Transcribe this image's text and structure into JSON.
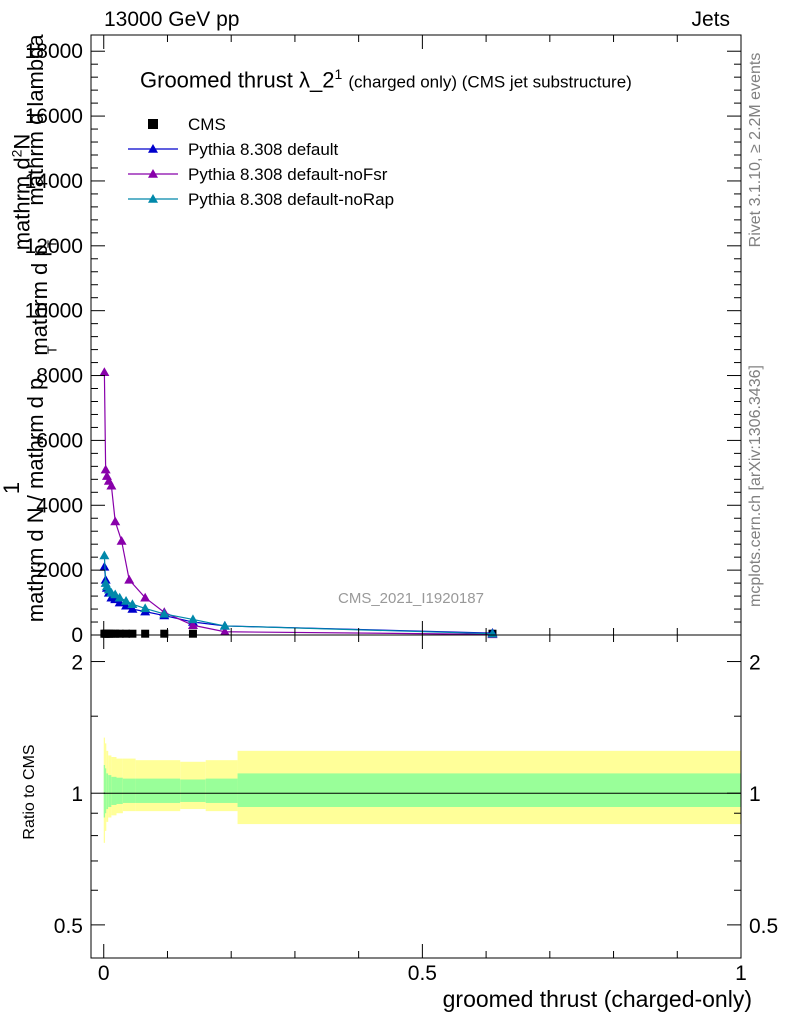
{
  "header": {
    "left": "13000 GeV pp",
    "right": "Jets"
  },
  "side_labels": {
    "rivet": "Rivet 3.1.10, ≥ 2.2M events",
    "mcplots": "mcplots.cern.ch [arXiv:1306.3436]"
  },
  "watermark": "CMS_2021_I1920187",
  "colors": {
    "cms": "#000000",
    "default": "#0000cc",
    "noFsr": "#8800aa",
    "noRap": "#0088aa",
    "band_outer": "#ffff99",
    "band_inner": "#99ff99"
  },
  "chart_data": [
    {
      "type": "line",
      "title": "Groomed thrust",
      "title_symbol": "λ_2",
      "title_superscript": "1",
      "title_suffix": "(charged only) (CMS jet substructure)",
      "ylabel": "1 / mathrm d N / mathrm d p_T  mathrm d^2N / mathrm d p_T mathrm d lambda",
      "ylabel_parts": {
        "one": "1",
        "den": "mathrm d N / mathrm d p",
        "num_top": "mathrm d",
        "num_sup": "2",
        "num_rest": "N",
        "den2": "mathrm d p",
        "lam": "mathrm d lambda",
        "sub_t": "T"
      },
      "xlabel": "groomed thrust (charged-only)",
      "xlim": [
        -0.02,
        1.0
      ],
      "ylim": [
        0,
        18500
      ],
      "yticks": [
        0,
        2000,
        4000,
        6000,
        8000,
        10000,
        12000,
        14000,
        16000,
        18000
      ],
      "ytick_labels": [
        "0",
        "2000",
        "4000",
        "6000",
        "8000",
        "10000",
        "12000",
        "14000",
        "16000",
        "18000"
      ],
      "legend_position": "top-left",
      "series": [
        {
          "name": "CMS",
          "marker": "square",
          "x": [
            0.001,
            0.003,
            0.005,
            0.008,
            0.012,
            0.018,
            0.025,
            0.035,
            0.045,
            0.065,
            0.095,
            0.14,
            0.61
          ],
          "y": [
            40,
            40,
            40,
            40,
            40,
            40,
            40,
            40,
            40,
            40,
            40,
            40,
            40
          ]
        },
        {
          "name": "Pythia 8.308 default",
          "marker": "triangle",
          "x": [
            0.001,
            0.003,
            0.005,
            0.008,
            0.012,
            0.018,
            0.025,
            0.035,
            0.045,
            0.065,
            0.095,
            0.14,
            0.19,
            0.61
          ],
          "y": [
            2100,
            1700,
            1450,
            1300,
            1150,
            1100,
            1000,
            900,
            800,
            720,
            600,
            400,
            280,
            60
          ]
        },
        {
          "name": "Pythia 8.308 default-noFsr",
          "marker": "triangle",
          "x": [
            0.001,
            0.003,
            0.005,
            0.008,
            0.012,
            0.018,
            0.028,
            0.04,
            0.065,
            0.095,
            0.14,
            0.19,
            0.61
          ],
          "y": [
            8100,
            5100,
            4900,
            4750,
            4600,
            3500,
            2900,
            1700,
            1150,
            700,
            300,
            100,
            20
          ]
        },
        {
          "name": "Pythia 8.308 default-noRap",
          "marker": "triangle",
          "x": [
            0.001,
            0.003,
            0.005,
            0.008,
            0.012,
            0.018,
            0.025,
            0.035,
            0.045,
            0.065,
            0.095,
            0.14,
            0.19,
            0.61
          ],
          "y": [
            2450,
            1600,
            1500,
            1400,
            1300,
            1250,
            1150,
            1050,
            950,
            820,
            650,
            480,
            280,
            40
          ]
        }
      ]
    },
    {
      "type": "area",
      "ylabel": "Ratio to CMS",
      "xlabel": "groomed thrust (charged-only)",
      "xlim": [
        -0.02,
        1.0
      ],
      "ylim": [
        0.42,
        2.3
      ],
      "ylog": true,
      "yticks": [
        0.5,
        1,
        2
      ],
      "ytick_labels": [
        "0.5",
        "1",
        "2"
      ],
      "xticks": [
        0,
        0.5,
        1
      ],
      "xtick_labels": [
        "0",
        "0.5",
        "1"
      ],
      "reference_line": 1,
      "bins": [
        {
          "x0": 0.0,
          "x1": 0.002,
          "outer": [
            0.77,
            1.34
          ],
          "inner": [
            0.88,
            1.16
          ]
        },
        {
          "x0": 0.002,
          "x1": 0.004,
          "outer": [
            0.82,
            1.3
          ],
          "inner": [
            0.9,
            1.14
          ]
        },
        {
          "x0": 0.004,
          "x1": 0.007,
          "outer": [
            0.86,
            1.25
          ],
          "inner": [
            0.92,
            1.11
          ]
        },
        {
          "x0": 0.007,
          "x1": 0.012,
          "outer": [
            0.88,
            1.22
          ],
          "inner": [
            0.93,
            1.1
          ]
        },
        {
          "x0": 0.012,
          "x1": 0.02,
          "outer": [
            0.89,
            1.21
          ],
          "inner": [
            0.94,
            1.09
          ]
        },
        {
          "x0": 0.02,
          "x1": 0.03,
          "outer": [
            0.9,
            1.2
          ],
          "inner": [
            0.945,
            1.085
          ]
        },
        {
          "x0": 0.03,
          "x1": 0.05,
          "outer": [
            0.91,
            1.2
          ],
          "inner": [
            0.95,
            1.08
          ]
        },
        {
          "x0": 0.05,
          "x1": 0.12,
          "outer": [
            0.91,
            1.19
          ],
          "inner": [
            0.95,
            1.08
          ]
        },
        {
          "x0": 0.12,
          "x1": 0.16,
          "outer": [
            0.92,
            1.18
          ],
          "inner": [
            0.955,
            1.075
          ]
        },
        {
          "x0": 0.16,
          "x1": 0.21,
          "outer": [
            0.91,
            1.19
          ],
          "inner": [
            0.95,
            1.08
          ]
        },
        {
          "x0": 0.21,
          "x1": 1.0,
          "outer": [
            0.85,
            1.25
          ],
          "inner": [
            0.93,
            1.11
          ]
        }
      ]
    }
  ]
}
